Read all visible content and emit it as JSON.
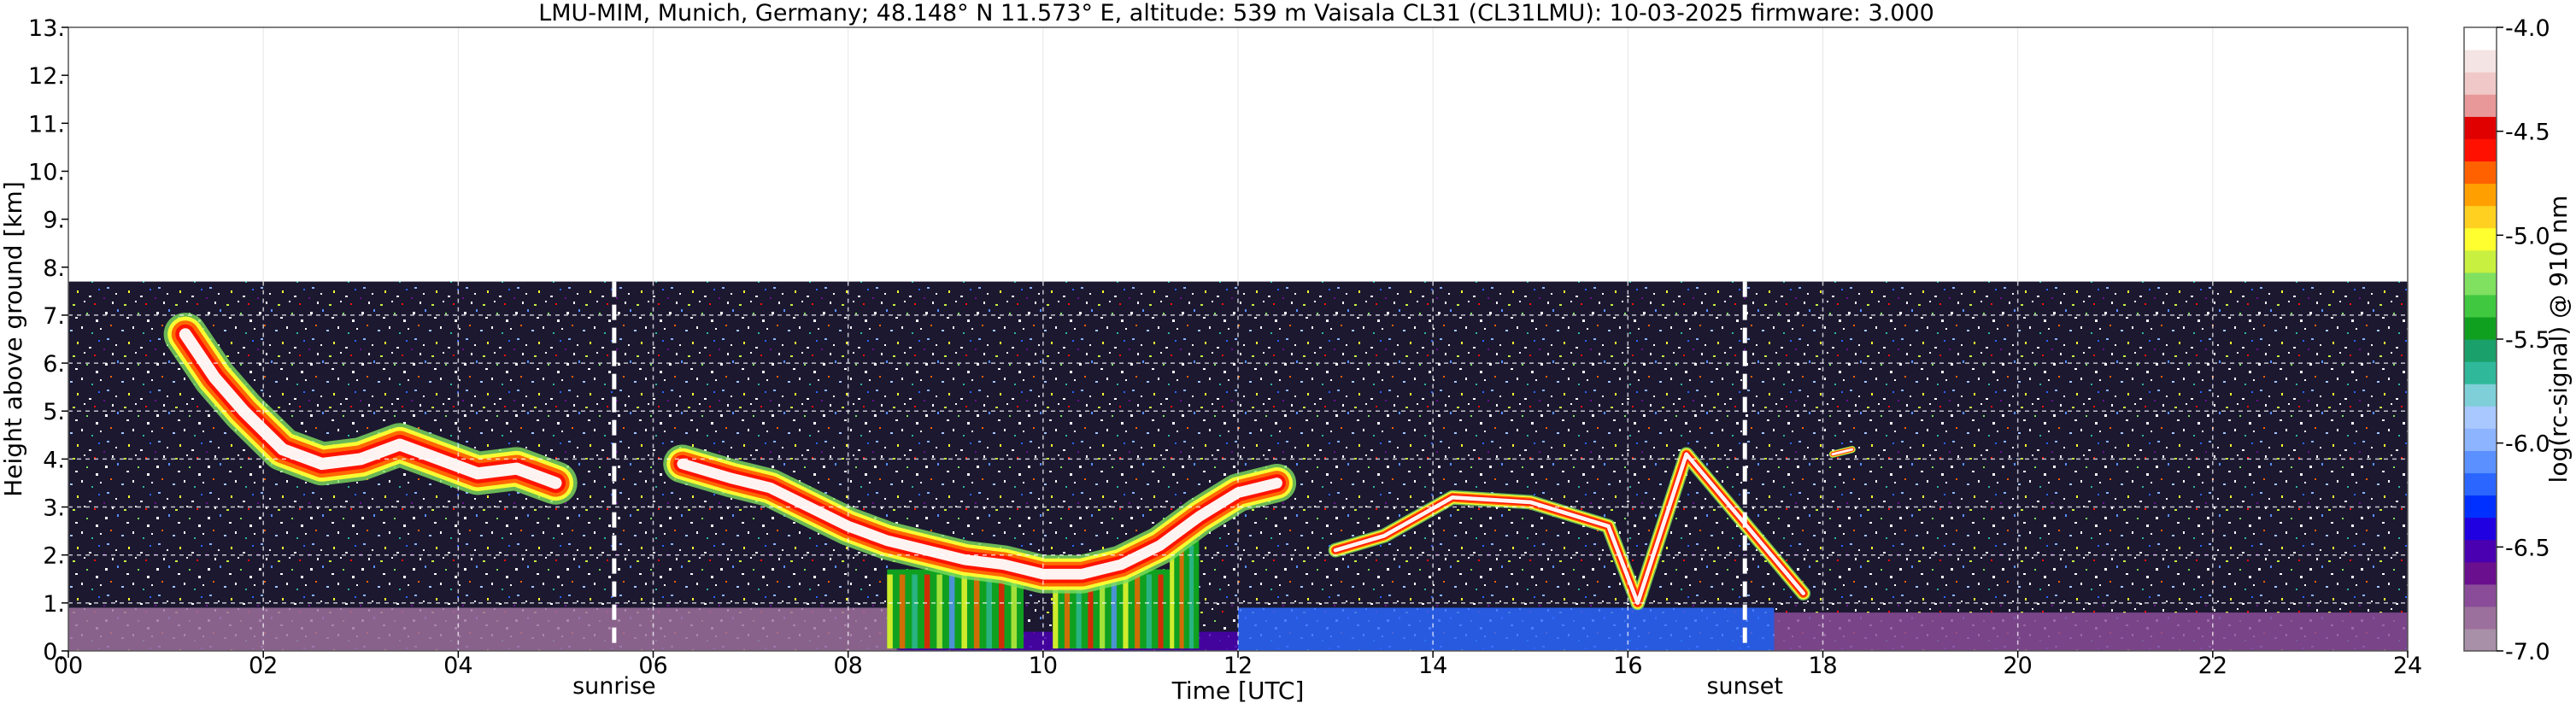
{
  "chart_data": {
    "type": "heatmap",
    "title": "LMU-MIM, Munich, Germany; 48.148° N 11.573° E, altitude: 539 m    Vaisala CL31 (CL31LMU): 10-03-2025    firmware: 3.000",
    "xlabel": "Time [UTC]",
    "ylabel": "Height above ground [km]",
    "colorbar_label": "log(rc-signal) @ 910 nm",
    "xlim": [
      0,
      24
    ],
    "ylim": [
      0,
      13
    ],
    "x_ticks": [
      0,
      2,
      4,
      6,
      8,
      10,
      12,
      14,
      16,
      18,
      20,
      22,
      24
    ],
    "x_tick_labels": [
      "00",
      "02",
      "04",
      "06",
      "08",
      "10",
      "12",
      "14",
      "16",
      "18",
      "20",
      "22",
      "24"
    ],
    "y_ticks": [
      0,
      1,
      2,
      3,
      4,
      5,
      6,
      7,
      8,
      9,
      10,
      11,
      12,
      13
    ],
    "y_tick_labels": [
      "0.",
      "1.",
      "2.",
      "3.",
      "4.",
      "5.",
      "6.",
      "7.",
      "8.",
      "9.",
      "10.",
      "11.",
      "12.",
      "13."
    ],
    "data_top_km": 7.7,
    "grid": true,
    "colorbar": {
      "range": [
        -7.0,
        -4.0
      ],
      "ticks": [
        -7.0,
        -6.5,
        -6.0,
        -5.5,
        -5.0,
        -4.5,
        -4.0
      ],
      "tick_labels": [
        "-7.0",
        "-6.5",
        "-6.0",
        "-5.5",
        "-5.0",
        "-4.5",
        "-4.0"
      ],
      "colors": [
        "#a890a8",
        "#9c709c",
        "#8a4c98",
        "#6a0f8e",
        "#4a00b0",
        "#2000e0",
        "#0030ff",
        "#2a66ff",
        "#5a90ff",
        "#8cb4ff",
        "#a8c8ff",
        "#7ecfd8",
        "#2fb89a",
        "#1aa06a",
        "#10a020",
        "#40c840",
        "#80e060",
        "#c8f040",
        "#ffff30",
        "#ffd020",
        "#ffa000",
        "#ff6000",
        "#ff1000",
        "#e00000",
        "#e89898",
        "#f0c8c8",
        "#f4e4e4",
        "#ffffff"
      ]
    },
    "markers": [
      {
        "label": "sunrise",
        "x": 5.6
      },
      {
        "label": "sunset",
        "x": 17.2
      }
    ],
    "cloud_layers": [
      {
        "name": "morning-aloft-cloud",
        "points": [
          [
            1.2,
            6.6
          ],
          [
            1.5,
            5.7
          ],
          [
            1.8,
            5.0
          ],
          [
            2.2,
            4.2
          ],
          [
            2.6,
            3.9
          ],
          [
            3.0,
            4.0
          ],
          [
            3.4,
            4.3
          ],
          [
            3.8,
            4.0
          ],
          [
            4.2,
            3.7
          ],
          [
            4.6,
            3.8
          ],
          [
            5.0,
            3.5
          ]
        ],
        "thickness": 0.9
      },
      {
        "name": "descending-cloud",
        "points": [
          [
            6.3,
            3.9
          ],
          [
            6.8,
            3.6
          ],
          [
            7.2,
            3.4
          ],
          [
            7.6,
            3.0
          ],
          [
            8.0,
            2.6
          ],
          [
            8.4,
            2.3
          ],
          [
            8.8,
            2.1
          ],
          [
            9.2,
            1.9
          ],
          [
            9.6,
            1.8
          ],
          [
            10.0,
            1.6
          ],
          [
            10.4,
            1.6
          ],
          [
            10.8,
            1.8
          ],
          [
            11.2,
            2.2
          ],
          [
            11.6,
            2.8
          ],
          [
            12.0,
            3.3
          ],
          [
            12.4,
            3.5
          ]
        ],
        "thickness": 0.8
      },
      {
        "name": "afternoon-fragments",
        "points": [
          [
            13.0,
            2.1
          ],
          [
            13.5,
            2.4
          ],
          [
            14.2,
            3.2
          ],
          [
            15.0,
            3.1
          ],
          [
            15.8,
            2.6
          ],
          [
            16.1,
            1.0
          ],
          [
            16.6,
            4.1
          ],
          [
            17.8,
            1.2
          ]
        ],
        "thickness": 0.3
      },
      {
        "name": "evening-fragment",
        "points": [
          [
            18.1,
            4.1
          ],
          [
            18.3,
            4.2
          ]
        ],
        "thickness": 0.15
      }
    ],
    "convective_columns": [
      {
        "x0": 8.4,
        "x1": 9.8,
        "top": 1.7
      },
      {
        "x0": 10.1,
        "x1": 11.3,
        "top": 1.7
      },
      {
        "x0": 11.3,
        "x1": 11.6,
        "top": 2.3
      }
    ],
    "surface_layer": [
      {
        "x0": 0,
        "x1": 8.5,
        "top": 0.9,
        "color": "#9c709c"
      },
      {
        "x0": 8.5,
        "x1": 12.0,
        "top": 0.4,
        "color": "#4a00b0"
      },
      {
        "x0": 12.0,
        "x1": 17.5,
        "top": 0.9,
        "color": "#2a66ff"
      },
      {
        "x0": 17.5,
        "x1": 24,
        "top": 0.8,
        "color": "#8a4c98"
      }
    ]
  }
}
